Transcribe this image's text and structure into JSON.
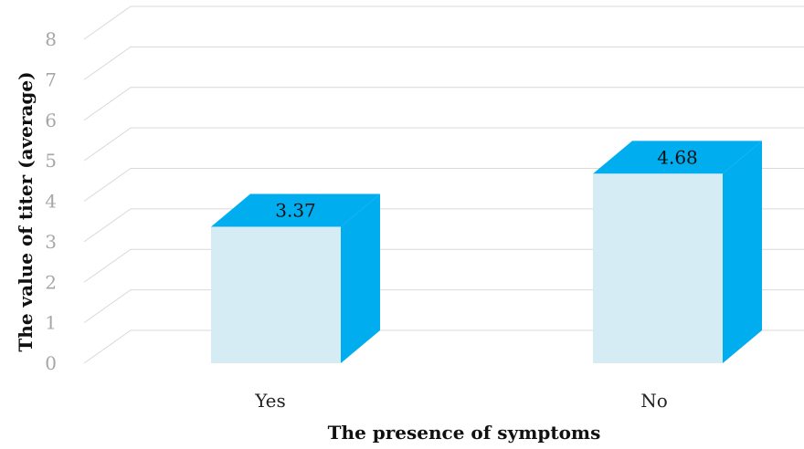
{
  "chart_data": {
    "type": "bar",
    "categories": [
      "Yes",
      "No"
    ],
    "values": [
      3.37,
      4.68
    ],
    "data_labels": [
      "3.37",
      "4.68"
    ],
    "xlabel": "The presence of symptoms",
    "ylabel": "The value of titer (average)",
    "ylim": [
      0,
      8
    ],
    "yticks": [
      "0",
      "1",
      "2",
      "3",
      "4",
      "5",
      "6",
      "7",
      "8"
    ],
    "grid": true,
    "legend": "none",
    "style": "3d-column",
    "colors": {
      "front": "#d6ecf4",
      "side": "#00adef",
      "grid": "#d9d9d9",
      "tick": "#a6a6a6"
    }
  }
}
